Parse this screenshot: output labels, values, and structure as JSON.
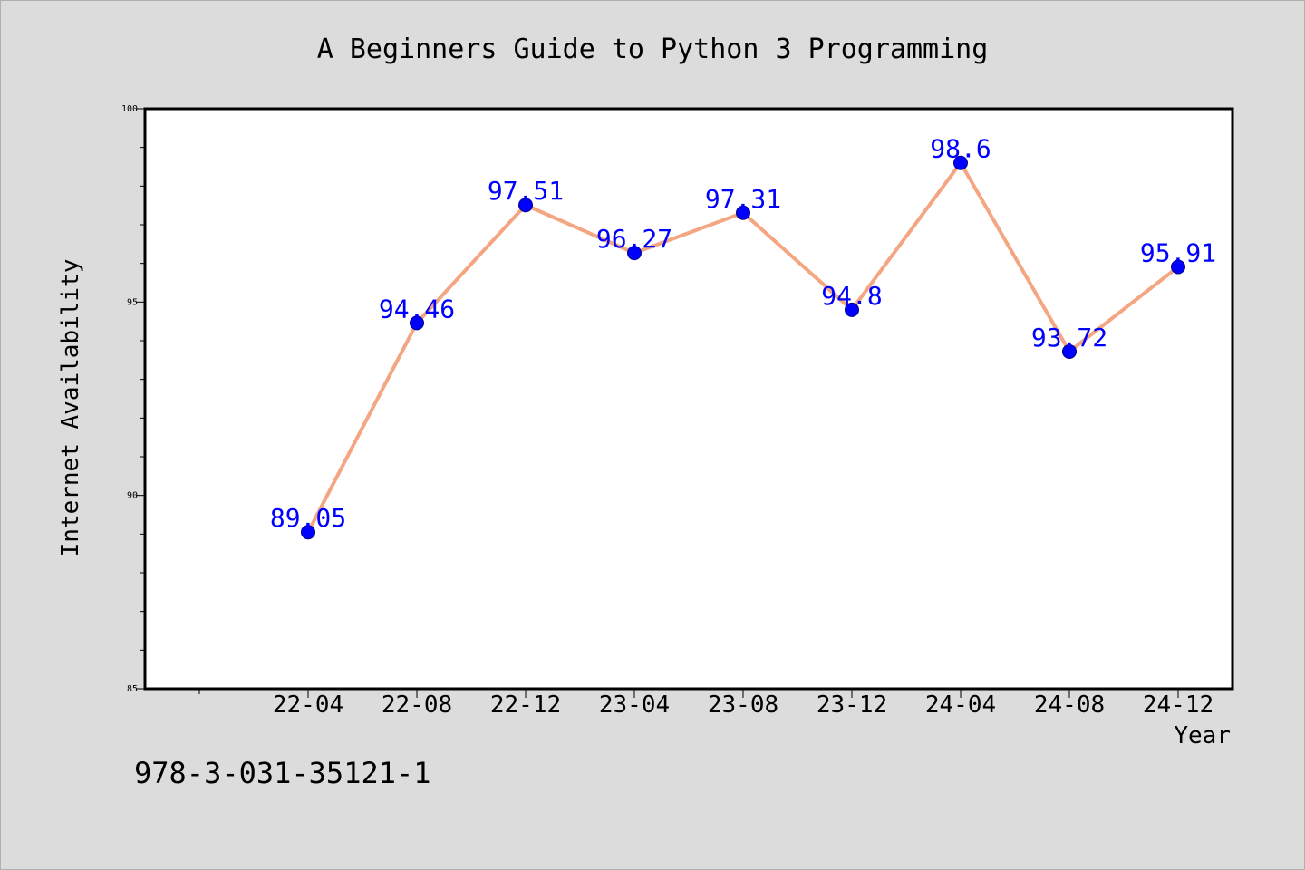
{
  "chart_data": {
    "type": "line",
    "title": "A Beginners Guide to Python 3 Programming",
    "xlabel": "Year",
    "ylabel": "Internet Availability",
    "categories": [
      "22-04",
      "22-08",
      "22-12",
      "23-04",
      "23-08",
      "23-12",
      "24-04",
      "24-08",
      "24-12"
    ],
    "series": [
      {
        "values": [
          89.05,
          94.46,
          97.51,
          96.27,
          97.31,
          94.8,
          98.6,
          93.72,
          95.91
        ],
        "labels": [
          "89.05",
          "94.46",
          "97.51",
          "96.27",
          "97.31",
          "94.8",
          "98.6",
          "93.72",
          "95.91"
        ]
      }
    ],
    "ylim": [
      85,
      100
    ],
    "yticks": [
      "85",
      "90",
      "95",
      "100"
    ],
    "grid": false,
    "line_color": "#f4a582",
    "marker_color": "#0000ff",
    "label_color": "#0000ff"
  },
  "footer": {
    "isbn": "978-3-031-35121-1"
  }
}
